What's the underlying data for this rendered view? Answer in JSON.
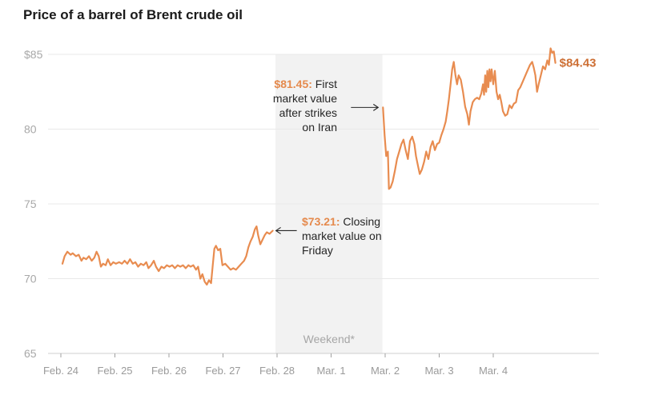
{
  "title": "Price of a barrel of Brent crude oil",
  "colors": {
    "line": "#e88c50",
    "value_label": "#cd6f34",
    "shade": "#f2f2f2",
    "grid": "#e9e9e9"
  },
  "chart_data": {
    "type": "line",
    "title": "Price of a barrel of Brent crude oil",
    "ylim": [
      65,
      85
    ],
    "y_ticks": [
      {
        "value": 65,
        "label": "65"
      },
      {
        "value": 70,
        "label": "70"
      },
      {
        "value": 75,
        "label": "75"
      },
      {
        "value": 80,
        "label": "80"
      },
      {
        "value": 85,
        "label": "$85"
      }
    ],
    "x_range_days": [
      0,
      10.0
    ],
    "x_ticks": [
      {
        "day": 0,
        "label": "Feb. 24"
      },
      {
        "day": 1,
        "label": "Feb. 25"
      },
      {
        "day": 2,
        "label": "Feb. 26"
      },
      {
        "day": 3,
        "label": "Feb. 27"
      },
      {
        "day": 4,
        "label": "Feb. 28"
      },
      {
        "day": 5,
        "label": "Mar. 1"
      },
      {
        "day": 6,
        "label": "Mar. 2"
      },
      {
        "day": 7,
        "label": "Mar. 3"
      },
      {
        "day": 8,
        "label": "Mar. 4"
      }
    ],
    "weekend": {
      "start_day": 3.97,
      "end_day": 5.95,
      "label": "Weekend*"
    },
    "series": [
      {
        "name": "Brent crude",
        "points": [
          [
            0.03,
            71.0
          ],
          [
            0.07,
            71.5
          ],
          [
            0.12,
            71.8
          ],
          [
            0.18,
            71.6
          ],
          [
            0.22,
            71.7
          ],
          [
            0.28,
            71.5
          ],
          [
            0.33,
            71.6
          ],
          [
            0.38,
            71.2
          ],
          [
            0.42,
            71.4
          ],
          [
            0.47,
            71.3
          ],
          [
            0.52,
            71.5
          ],
          [
            0.57,
            71.2
          ],
          [
            0.62,
            71.4
          ],
          [
            0.66,
            71.8
          ],
          [
            0.7,
            71.5
          ],
          [
            0.74,
            70.8
          ],
          [
            0.78,
            71.0
          ],
          [
            0.83,
            70.9
          ],
          [
            0.87,
            71.3
          ],
          [
            0.92,
            70.9
          ],
          [
            0.97,
            71.1
          ],
          [
            1.02,
            71.0
          ],
          [
            1.08,
            71.1
          ],
          [
            1.13,
            71.0
          ],
          [
            1.18,
            71.2
          ],
          [
            1.23,
            71.0
          ],
          [
            1.28,
            71.3
          ],
          [
            1.33,
            71.0
          ],
          [
            1.38,
            71.1
          ],
          [
            1.43,
            70.8
          ],
          [
            1.48,
            71.0
          ],
          [
            1.53,
            70.9
          ],
          [
            1.58,
            71.1
          ],
          [
            1.62,
            70.7
          ],
          [
            1.67,
            70.9
          ],
          [
            1.72,
            71.2
          ],
          [
            1.76,
            70.8
          ],
          [
            1.81,
            70.5
          ],
          [
            1.86,
            70.8
          ],
          [
            1.91,
            70.7
          ],
          [
            1.96,
            70.9
          ],
          [
            2.01,
            70.8
          ],
          [
            2.06,
            70.9
          ],
          [
            2.11,
            70.7
          ],
          [
            2.16,
            70.9
          ],
          [
            2.21,
            70.8
          ],
          [
            2.26,
            70.9
          ],
          [
            2.31,
            70.7
          ],
          [
            2.36,
            70.9
          ],
          [
            2.4,
            70.8
          ],
          [
            2.45,
            70.9
          ],
          [
            2.5,
            70.6
          ],
          [
            2.54,
            70.8
          ],
          [
            2.58,
            70.0
          ],
          [
            2.62,
            70.3
          ],
          [
            2.66,
            69.8
          ],
          [
            2.7,
            69.6
          ],
          [
            2.74,
            69.9
          ],
          [
            2.78,
            69.7
          ],
          [
            2.81,
            70.9
          ],
          [
            2.84,
            72.0
          ],
          [
            2.87,
            72.2
          ],
          [
            2.91,
            71.9
          ],
          [
            2.95,
            72.0
          ],
          [
            2.99,
            70.9
          ],
          [
            3.04,
            71.0
          ],
          [
            3.09,
            70.8
          ],
          [
            3.14,
            70.6
          ],
          [
            3.19,
            70.7
          ],
          [
            3.24,
            70.6
          ],
          [
            3.29,
            70.8
          ],
          [
            3.34,
            71.0
          ],
          [
            3.39,
            71.2
          ],
          [
            3.43,
            71.5
          ],
          [
            3.47,
            72.1
          ],
          [
            3.51,
            72.5
          ],
          [
            3.55,
            72.8
          ],
          [
            3.59,
            73.3
          ],
          [
            3.62,
            73.5
          ],
          [
            3.65,
            72.9
          ],
          [
            3.69,
            72.3
          ],
          [
            3.73,
            72.6
          ],
          [
            3.77,
            72.9
          ],
          [
            3.81,
            73.1
          ],
          [
            3.86,
            73.0
          ],
          [
            3.92,
            73.21
          ],
          null,
          [
            5.96,
            81.45
          ],
          [
            5.99,
            79.6
          ],
          [
            6.02,
            78.2
          ],
          [
            6.05,
            78.5
          ],
          [
            6.07,
            76.0
          ],
          [
            6.1,
            76.1
          ],
          [
            6.14,
            76.5
          ],
          [
            6.18,
            77.2
          ],
          [
            6.22,
            78.0
          ],
          [
            6.26,
            78.5
          ],
          [
            6.3,
            79.0
          ],
          [
            6.34,
            79.3
          ],
          [
            6.38,
            78.6
          ],
          [
            6.42,
            78.0
          ],
          [
            6.46,
            79.2
          ],
          [
            6.5,
            79.5
          ],
          [
            6.54,
            79.0
          ],
          [
            6.57,
            78.2
          ],
          [
            6.61,
            77.5
          ],
          [
            6.64,
            77.0
          ],
          [
            6.68,
            77.3
          ],
          [
            6.72,
            77.8
          ],
          [
            6.76,
            78.5
          ],
          [
            6.8,
            78.0
          ],
          [
            6.84,
            78.8
          ],
          [
            6.88,
            79.2
          ],
          [
            6.92,
            78.6
          ],
          [
            6.96,
            79.0
          ],
          [
            7.0,
            79.1
          ],
          [
            7.04,
            79.6
          ],
          [
            7.08,
            80.0
          ],
          [
            7.12,
            80.5
          ],
          [
            7.15,
            81.2
          ],
          [
            7.18,
            82.0
          ],
          [
            7.21,
            83.0
          ],
          [
            7.24,
            84.0
          ],
          [
            7.27,
            84.5
          ],
          [
            7.3,
            83.6
          ],
          [
            7.33,
            83.0
          ],
          [
            7.36,
            83.6
          ],
          [
            7.4,
            83.3
          ],
          [
            7.44,
            82.5
          ],
          [
            7.48,
            81.5
          ],
          [
            7.52,
            81.0
          ],
          [
            7.55,
            80.3
          ],
          [
            7.58,
            81.2
          ],
          [
            7.62,
            81.8
          ],
          [
            7.66,
            82.0
          ],
          [
            7.7,
            82.1
          ],
          [
            7.74,
            82.0
          ],
          [
            7.78,
            82.4
          ],
          [
            7.81,
            83.0
          ],
          [
            7.83,
            82.3
          ],
          [
            7.85,
            83.6
          ],
          [
            7.87,
            82.5
          ],
          [
            7.89,
            83.9
          ],
          [
            7.91,
            82.8
          ],
          [
            7.93,
            84.0
          ],
          [
            7.95,
            83.2
          ],
          [
            7.97,
            84.0
          ],
          [
            8.0,
            83.0
          ],
          [
            8.03,
            83.9
          ],
          [
            8.06,
            82.5
          ],
          [
            8.09,
            82.0
          ],
          [
            8.12,
            82.3
          ],
          [
            8.15,
            81.8
          ],
          [
            8.18,
            81.2
          ],
          [
            8.22,
            80.9
          ],
          [
            8.26,
            81.0
          ],
          [
            8.3,
            81.6
          ],
          [
            8.34,
            81.4
          ],
          [
            8.38,
            81.7
          ],
          [
            8.42,
            81.8
          ],
          [
            8.46,
            82.6
          ],
          [
            8.5,
            82.8
          ],
          [
            8.56,
            83.3
          ],
          [
            8.62,
            83.8
          ],
          [
            8.68,
            84.3
          ],
          [
            8.72,
            84.5
          ],
          [
            8.75,
            84.1
          ],
          [
            8.78,
            83.6
          ],
          [
            8.81,
            82.5
          ],
          [
            8.84,
            83.0
          ],
          [
            8.88,
            83.6
          ],
          [
            8.92,
            84.2
          ],
          [
            8.96,
            84.0
          ],
          [
            9.0,
            84.6
          ],
          [
            9.03,
            84.3
          ],
          [
            9.06,
            85.4
          ],
          [
            9.09,
            85.1
          ],
          [
            9.12,
            85.2
          ],
          [
            9.15,
            84.43
          ]
        ]
      }
    ],
    "annotations": [
      {
        "id": "friday_close",
        "day": 3.92,
        "value": 73.21,
        "value_text": "$73.21:",
        "lines": [
          "Closing",
          "market value on",
          "Friday"
        ]
      },
      {
        "id": "first_after_strikes",
        "day": 5.96,
        "value": 81.45,
        "value_text": "$81.45:",
        "lines": [
          "First",
          "market value",
          "after strikes",
          "on Iran"
        ]
      }
    ],
    "last_value": {
      "day": 9.15,
      "value": 84.43,
      "label": "$84.43"
    }
  }
}
